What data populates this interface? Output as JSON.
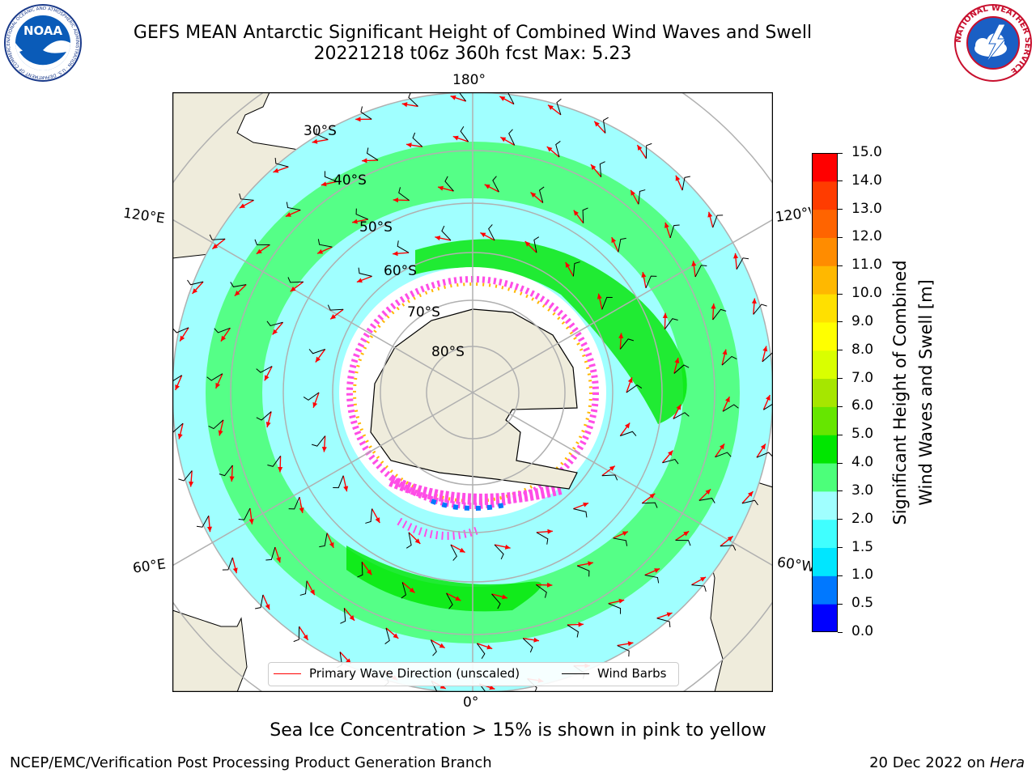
{
  "title": {
    "line1": "GEFS MEAN Antarctic Significant Height of Combined Wind Waves and Swell",
    "line2": "20221218 t06z 360h fcst   Max: 5.23"
  },
  "logos": {
    "noaa": {
      "text": "NOAA",
      "ring_text": "NATIONAL OCEANIC AND ATMOSPHERIC ADMINISTRATION · U.S. DEPARTMENT OF COMMERCE"
    },
    "nws": {
      "ring_text": "NATIONAL WEATHER SERVICE"
    }
  },
  "map": {
    "projection": "south-polar-stereographic",
    "longitude_labels": {
      "top": "180°",
      "bottom": "0°",
      "upper_left": "120°E",
      "upper_right": "120°W",
      "lower_left": "60°E",
      "lower_right": "60°W"
    },
    "latitude_labels": [
      "30°S",
      "40°S",
      "50°S",
      "60°S",
      "70°S",
      "80°S"
    ],
    "land_color": "#efecdc",
    "ocean_color": "#ffffff"
  },
  "colorbar": {
    "ticks": [
      "0.0",
      "0.5",
      "1.0",
      "1.5",
      "2.0",
      "3.0",
      "4.0",
      "5.0",
      "6.0",
      "7.0",
      "8.0",
      "9.0",
      "10.0",
      "11.0",
      "12.0",
      "13.0",
      "14.0",
      "15.0"
    ],
    "colors": [
      "#0000ff",
      "#0078ff",
      "#00e6ff",
      "#40ffff",
      "#a0ffff",
      "#4cff7a",
      "#00e600",
      "#66e600",
      "#a6e600",
      "#d9ff00",
      "#ffff00",
      "#ffe000",
      "#ffb800",
      "#ff8c00",
      "#ff6400",
      "#ff3c00",
      "#ff0000"
    ],
    "label_line1": "Significant Height of Combined",
    "label_line2": "Wind Waves and Swell [m]"
  },
  "legend": {
    "primary_wave": {
      "label": "Primary Wave Direction (unscaled)",
      "color": "#ff0000"
    },
    "wind_barbs": {
      "label": "Wind Barbs",
      "color": "#000000"
    }
  },
  "caption": "Sea Ice Concentration > 15% is shown in pink to yellow",
  "footer": {
    "left": "NCEP/EMC/Verification Post Processing Product Generation Branch",
    "date": "20 Dec 2022 on ",
    "host": "Hera"
  }
}
